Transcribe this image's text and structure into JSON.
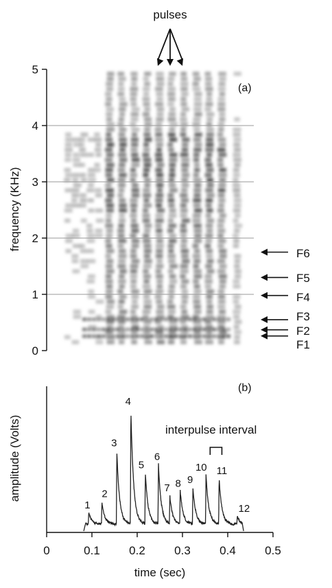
{
  "chart_data": [
    {
      "type": "heatmap",
      "panel_label": "(a)",
      "ylabel": "frequency (KHz)",
      "ylim": [
        0,
        5
      ],
      "yticks": [
        "0",
        "1",
        "2",
        "3",
        "4",
        "5"
      ],
      "grid_y": [
        1,
        2,
        3,
        4
      ],
      "top_annotation": "pulses",
      "top_annotation_arrow_count": 3,
      "formant_labels": [
        {
          "name": "F6",
          "y": 1.75
        },
        {
          "name": "F5",
          "y": 1.3
        },
        {
          "name": "F4",
          "y": 0.98
        },
        {
          "name": "F3",
          "y": 0.55
        },
        {
          "name": "F2",
          "y": 0.37
        },
        {
          "name": "F1",
          "y": 0.26
        }
      ]
    },
    {
      "type": "line",
      "panel_label": "(b)",
      "xlabel": "time (sec)",
      "ylabel": "amplitude (Volts)",
      "xlim": [
        0,
        0.5
      ],
      "xticks": [
        "0",
        "0.1",
        "0.2",
        "0.3",
        "0.4",
        "0.5"
      ],
      "annotation": "interpulse interval",
      "pulses": [
        {
          "label": "1",
          "time": 0.093,
          "rel_amplitude": 0.1
        },
        {
          "label": "2",
          "time": 0.122,
          "rel_amplitude": 0.2
        },
        {
          "label": "3",
          "time": 0.155,
          "rel_amplitude": 0.64
        },
        {
          "label": "4",
          "time": 0.186,
          "rel_amplitude": 1.0
        },
        {
          "label": "5",
          "time": 0.218,
          "rel_amplitude": 0.45
        },
        {
          "label": "6",
          "time": 0.247,
          "rel_amplitude": 0.52
        },
        {
          "label": "7",
          "time": 0.272,
          "rel_amplitude": 0.25
        },
        {
          "label": "8",
          "time": 0.295,
          "rel_amplitude": 0.29
        },
        {
          "label": "9",
          "time": 0.323,
          "rel_amplitude": 0.32
        },
        {
          "label": "10",
          "time": 0.352,
          "rel_amplitude": 0.43
        },
        {
          "label": "11",
          "time": 0.381,
          "rel_amplitude": 0.4
        },
        {
          "label": "12",
          "time": 0.421,
          "rel_amplitude": 0.07
        }
      ]
    }
  ]
}
